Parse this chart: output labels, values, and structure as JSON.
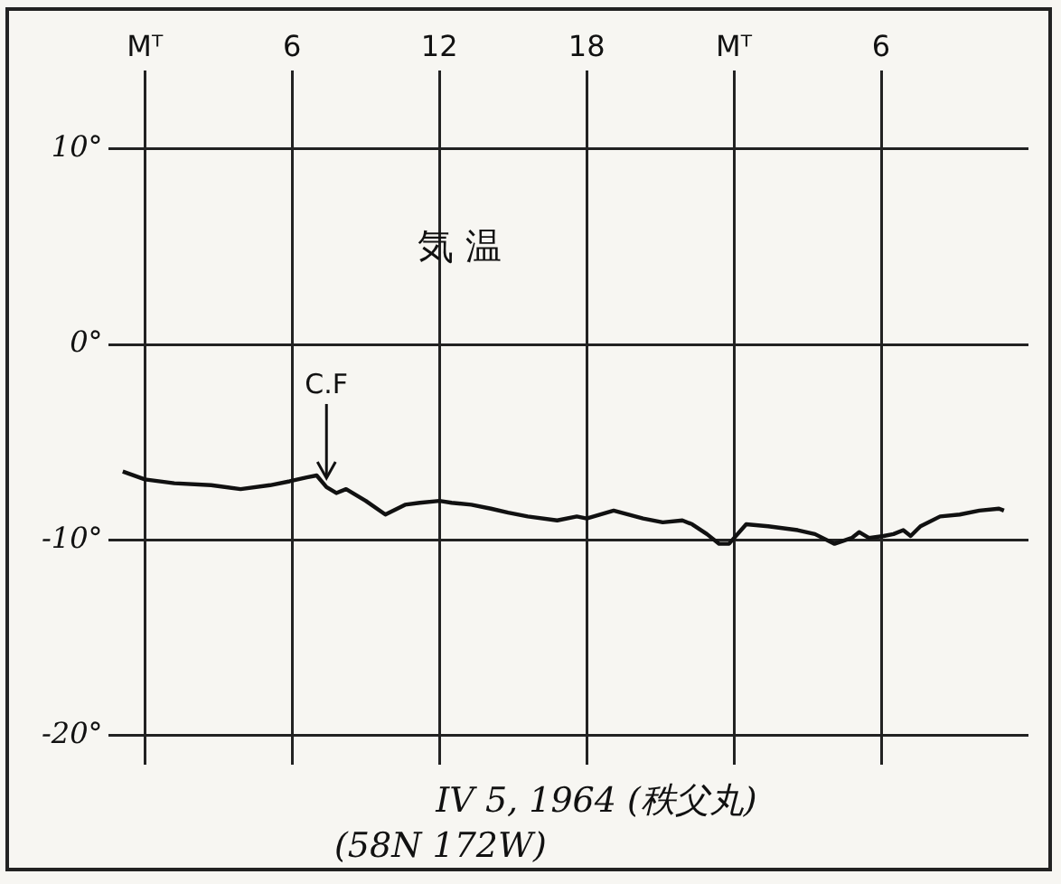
{
  "chart_data": {
    "type": "line",
    "title": "気 温",
    "x": [
      "1964-04-04T23:06",
      "1964-04-05T00:00",
      "1964-04-05T01:12",
      "1964-04-05T02:42",
      "1964-04-05T03:54",
      "1964-04-05T05:06",
      "1964-04-05T05:54",
      "1964-04-05T06:36",
      "1964-04-05T07:00",
      "1964-04-05T07:24",
      "1964-04-05T07:48",
      "1964-04-05T08:12",
      "1964-04-05T09:00",
      "1964-04-05T09:48",
      "1964-04-05T10:36",
      "1964-04-05T11:12",
      "1964-04-05T12:00",
      "1964-04-05T12:30",
      "1964-04-05T13:18",
      "1964-04-05T14:06",
      "1964-04-05T14:48",
      "1964-04-05T15:36",
      "1964-04-05T16:48",
      "1964-04-05T17:36",
      "1964-04-05T18:00",
      "1964-04-05T19:06",
      "1964-04-05T20:18",
      "1964-04-05T21:06",
      "1964-04-05T21:54",
      "1964-04-05T22:18",
      "1964-04-05T22:54",
      "1964-04-05T23:24",
      "1964-04-05T23:48",
      "1964-04-06T00:30",
      "1964-04-06T01:24",
      "1964-04-06T02:36",
      "1964-04-06T03:18",
      "1964-04-06T04:06",
      "1964-04-06T04:48",
      "1964-04-06T05:06",
      "1964-04-06T05:30",
      "1964-04-06T06:06",
      "1964-04-06T06:30",
      "1964-04-06T06:54",
      "1964-04-06T07:12",
      "1964-04-06T07:36",
      "1964-04-06T08:24",
      "1964-04-06T09:12",
      "1964-04-06T10:00",
      "1964-04-06T10:48",
      "1964-04-06T11:00"
    ],
    "series": [
      {
        "color": "#111111",
        "values": [
          -6.5,
          -6.9,
          -7.1,
          -7.2,
          -7.4,
          -7.2,
          -7.0,
          -6.8,
          -6.7,
          -7.3,
          -7.6,
          -7.4,
          -8.0,
          -8.7,
          -8.2,
          -8.1,
          -8.0,
          -8.1,
          -8.2,
          -8.4,
          -8.6,
          -8.8,
          -9.0,
          -8.8,
          -8.9,
          -8.5,
          -8.9,
          -9.1,
          -9.0,
          -9.2,
          -9.7,
          -10.2,
          -10.2,
          -9.2,
          -9.3,
          -9.5,
          -9.7,
          -10.2,
          -9.9,
          -9.6,
          -9.9,
          -9.8,
          -9.7,
          -9.5,
          -9.8,
          -9.3,
          -8.8,
          -8.7,
          -8.5,
          -8.4,
          -8.5
        ]
      }
    ],
    "xlim": [
      "1964-04-04T22:30",
      "1964-04-06T12:00"
    ],
    "xticks": [
      {
        "value": "1964-04-05T00:00",
        "label": "Mᵀ"
      },
      {
        "value": "1964-04-05T06:00",
        "label": "6"
      },
      {
        "value": "1964-04-05T12:00",
        "label": "12"
      },
      {
        "value": "1964-04-05T18:00",
        "label": "18"
      },
      {
        "value": "1964-04-06T00:00",
        "label": "Mᵀ"
      },
      {
        "value": "1964-04-06T06:00",
        "label": "6"
      }
    ],
    "ylim": [
      -21.5,
      14
    ],
    "yticks": [
      {
        "value": 10,
        "label": "10°"
      },
      {
        "value": 0,
        "label": "0°"
      },
      {
        "value": -10,
        "label": "-10°"
      },
      {
        "value": -20,
        "label": "-20°"
      }
    ],
    "grid": true,
    "legend": false,
    "marker": "none",
    "line_style": "solid",
    "annotations": [
      {
        "text": "C.F",
        "x": "1964-04-05T07:24",
        "y": -7.3
      },
      "IV 5, 1964 (秩父丸)",
      "(58N 172W)"
    ]
  }
}
